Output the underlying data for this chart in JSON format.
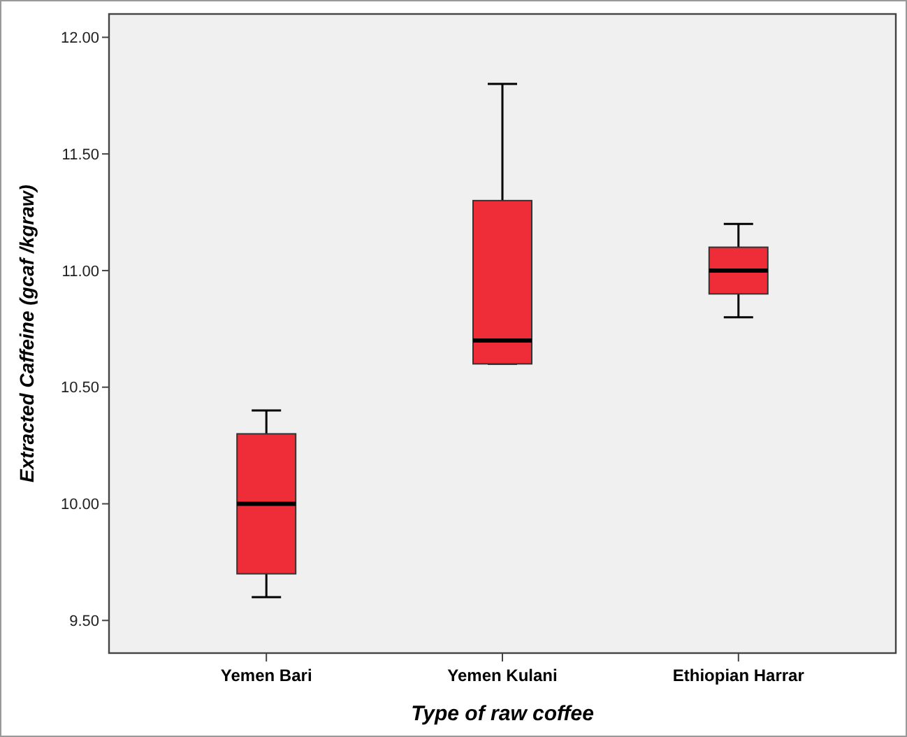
{
  "chart_data": {
    "type": "box",
    "xlabel": "Type of raw coffee",
    "ylabel": "Extracted Caffeine (gcaf /kgraw)",
    "categories": [
      "Yemen Bari",
      "Yemen Kulani",
      "Ethiopian Harrar"
    ],
    "color": "#ee2d38",
    "boxes": [
      {
        "low": 9.6,
        "q1": 9.7,
        "median": 10.0,
        "q3": 10.3,
        "high": 10.4
      },
      {
        "low": 10.6,
        "q1": 10.6,
        "median": 10.7,
        "q3": 11.3,
        "high": 11.8
      },
      {
        "low": 10.8,
        "q1": 10.9,
        "median": 11.0,
        "q3": 11.1,
        "high": 11.2
      }
    ],
    "ylim": [
      9.36,
      12.1
    ],
    "yticks": [
      {
        "value": 9.5,
        "label": "9.50"
      },
      {
        "value": 10,
        "label": "10.00"
      },
      {
        "value": 10.5,
        "label": "10.50"
      },
      {
        "value": 11,
        "label": "11.00"
      },
      {
        "value": 11.5,
        "label": "11.50"
      },
      {
        "value": 12,
        "label": "12.00"
      }
    ],
    "grid": false
  }
}
